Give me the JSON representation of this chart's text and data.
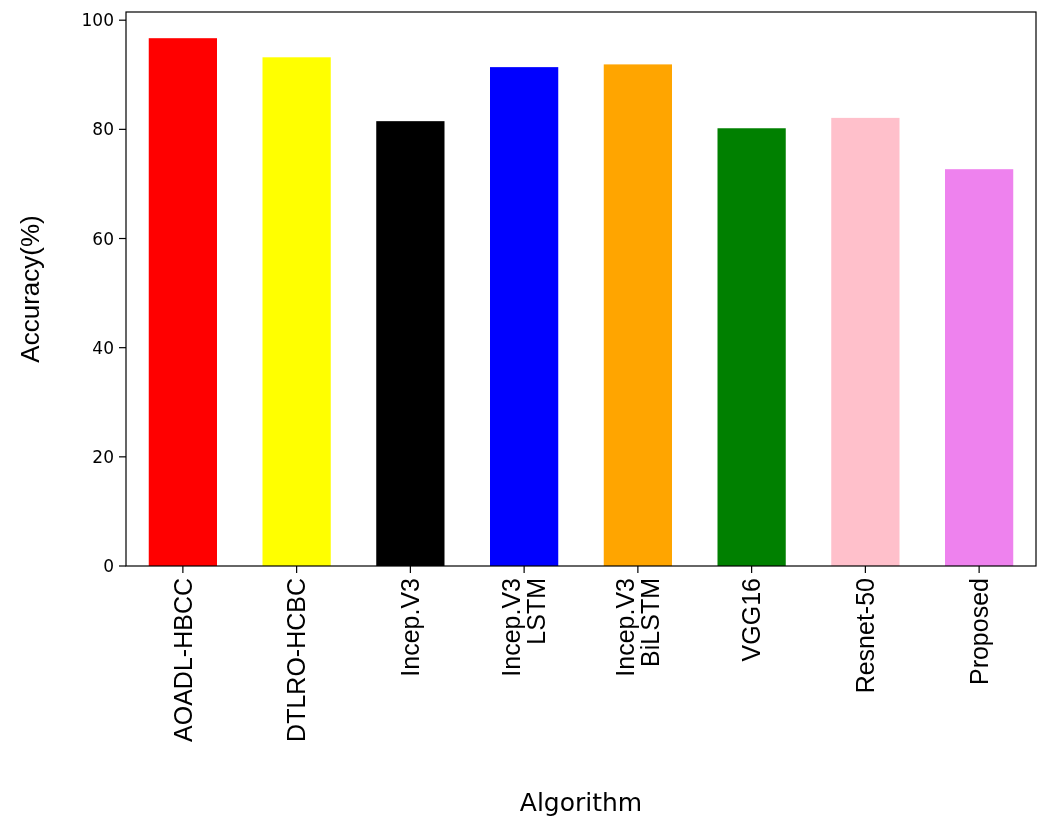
{
  "chart_data": {
    "type": "bar",
    "xlabel": "Algorithm",
    "ylabel": "Accuracy(%)",
    "categories": [
      "AOADL-HBCC",
      "DTLRO-HCBC",
      "Incep.V3",
      "Incep.V3\nLSTM",
      "Incep.V3\nBiLSTM",
      "VGG16",
      "Resnet-50",
      "Proposed"
    ],
    "values": [
      96.7,
      93.2,
      81.5,
      91.4,
      91.9,
      80.2,
      82.1,
      72.7
    ],
    "colors": [
      "#ff0000",
      "#ffff00",
      "#000000",
      "#0000ff",
      "#ffa500",
      "#008000",
      "#ffc0cb",
      "#ee82ee"
    ],
    "ylim": [
      0,
      101.5
    ],
    "yticks": [
      0,
      20,
      40,
      60,
      80,
      100
    ]
  }
}
